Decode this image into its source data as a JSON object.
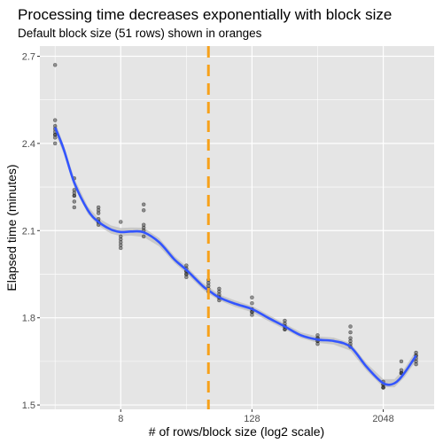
{
  "chart_data": {
    "type": "scatter",
    "title": "Processing time decreases exponentially with block size",
    "subtitle": "Default block size (51 rows) shown in oranges",
    "xlabel": "# of rows/block size (log2 scale)",
    "ylabel": "Elapsed time (minutes)",
    "x_scale": "log2",
    "xlim": [
      1.45,
      6000
    ],
    "ylim": [
      1.485,
      2.735
    ],
    "x_ticks": [
      8,
      128,
      2048
    ],
    "x_tick_labels": [
      "8",
      "128",
      "2048"
    ],
    "y_ticks": [
      1.5,
      1.8,
      2.1,
      2.4,
      2.7
    ],
    "y_tick_labels": [
      "1.5",
      "1.8",
      "2.1",
      "2.4",
      "2.7"
    ],
    "grid": true,
    "reference_line": {
      "x": 51,
      "color": "#f7a11a",
      "style": "dashed"
    },
    "colors": {
      "points": "#333333",
      "smooth": "#3355ff",
      "ribbon": "#bdbdbd",
      "panel": "#e5e5e5",
      "grid": "#ffffff",
      "reference": "#f7a11a"
    },
    "points": [
      {
        "x": 2,
        "y": [
          2.67,
          2.48,
          2.46,
          2.45,
          2.44,
          2.43,
          2.43,
          2.42,
          2.4
        ]
      },
      {
        "x": 3,
        "y": [
          2.28,
          2.24,
          2.23,
          2.22,
          2.22,
          2.2,
          2.18
        ]
      },
      {
        "x": 5,
        "y": [
          2.18,
          2.17,
          2.16,
          2.14,
          2.13,
          2.13,
          2.12
        ]
      },
      {
        "x": 8,
        "y": [
          2.13,
          2.08,
          2.07,
          2.06,
          2.05,
          2.04
        ]
      },
      {
        "x": 13,
        "y": [
          2.19,
          2.17,
          2.12,
          2.11,
          2.1,
          2.08
        ]
      },
      {
        "x": 32,
        "y": [
          1.98,
          1.97,
          1.96,
          1.96,
          1.95,
          1.95,
          1.94
        ]
      },
      {
        "x": 51,
        "y": [
          1.93,
          1.92,
          1.91,
          1.9,
          1.89
        ]
      },
      {
        "x": 64,
        "y": [
          1.9,
          1.89,
          1.88,
          1.87,
          1.87,
          1.86
        ]
      },
      {
        "x": 128,
        "y": [
          1.87,
          1.85,
          1.83,
          1.82,
          1.82,
          1.81
        ]
      },
      {
        "x": 256,
        "y": [
          1.79,
          1.78,
          1.77,
          1.77,
          1.76,
          1.76
        ]
      },
      {
        "x": 512,
        "y": [
          1.74,
          1.73,
          1.73,
          1.72,
          1.72,
          1.71
        ]
      },
      {
        "x": 1024,
        "y": [
          1.77,
          1.75,
          1.73,
          1.72,
          1.71,
          1.7
        ]
      },
      {
        "x": 2048,
        "y": [
          1.58,
          1.57,
          1.57,
          1.56,
          1.56,
          1.56
        ]
      },
      {
        "x": 3000,
        "y": [
          1.65,
          1.62,
          1.61,
          1.61,
          1.61
        ]
      },
      {
        "x": 4096,
        "y": [
          1.68,
          1.67,
          1.67,
          1.66,
          1.65,
          1.64
        ]
      }
    ],
    "smooth": [
      {
        "x": 2,
        "y": 2.455,
        "lo": 2.435,
        "hi": 2.475
      },
      {
        "x": 2.4,
        "y": 2.38,
        "lo": 2.365,
        "hi": 2.395
      },
      {
        "x": 3,
        "y": 2.265,
        "lo": 2.25,
        "hi": 2.28
      },
      {
        "x": 4,
        "y": 2.17,
        "lo": 2.157,
        "hi": 2.183
      },
      {
        "x": 5,
        "y": 2.13,
        "lo": 2.117,
        "hi": 2.143
      },
      {
        "x": 6.5,
        "y": 2.104,
        "lo": 2.09,
        "hi": 2.118
      },
      {
        "x": 8,
        "y": 2.095,
        "lo": 2.081,
        "hi": 2.109
      },
      {
        "x": 10,
        "y": 2.097,
        "lo": 2.083,
        "hi": 2.111
      },
      {
        "x": 13,
        "y": 2.094,
        "lo": 2.078,
        "hi": 2.11
      },
      {
        "x": 18,
        "y": 2.06,
        "lo": 2.046,
        "hi": 2.074
      },
      {
        "x": 25,
        "y": 2.0,
        "lo": 1.988,
        "hi": 2.012
      },
      {
        "x": 32,
        "y": 1.965,
        "lo": 1.953,
        "hi": 1.977
      },
      {
        "x": 45,
        "y": 1.91,
        "lo": 1.898,
        "hi": 1.922
      },
      {
        "x": 51,
        "y": 1.895,
        "lo": 1.883,
        "hi": 1.907
      },
      {
        "x": 64,
        "y": 1.87,
        "lo": 1.86,
        "hi": 1.88
      },
      {
        "x": 90,
        "y": 1.848,
        "lo": 1.837,
        "hi": 1.859
      },
      {
        "x": 128,
        "y": 1.83,
        "lo": 1.819,
        "hi": 1.841
      },
      {
        "x": 180,
        "y": 1.8,
        "lo": 1.789,
        "hi": 1.811
      },
      {
        "x": 256,
        "y": 1.77,
        "lo": 1.76,
        "hi": 1.78
      },
      {
        "x": 360,
        "y": 1.74,
        "lo": 1.73,
        "hi": 1.75
      },
      {
        "x": 512,
        "y": 1.725,
        "lo": 1.714,
        "hi": 1.736
      },
      {
        "x": 720,
        "y": 1.72,
        "lo": 1.708,
        "hi": 1.732
      },
      {
        "x": 1024,
        "y": 1.7,
        "lo": 1.687,
        "hi": 1.713
      },
      {
        "x": 1450,
        "y": 1.63,
        "lo": 1.617,
        "hi": 1.643
      },
      {
        "x": 2048,
        "y": 1.575,
        "lo": 1.561,
        "hi": 1.589
      },
      {
        "x": 2600,
        "y": 1.575,
        "lo": 1.561,
        "hi": 1.589
      },
      {
        "x": 3200,
        "y": 1.61,
        "lo": 1.595,
        "hi": 1.625
      },
      {
        "x": 4096,
        "y": 1.67,
        "lo": 1.652,
        "hi": 1.688
      }
    ]
  }
}
